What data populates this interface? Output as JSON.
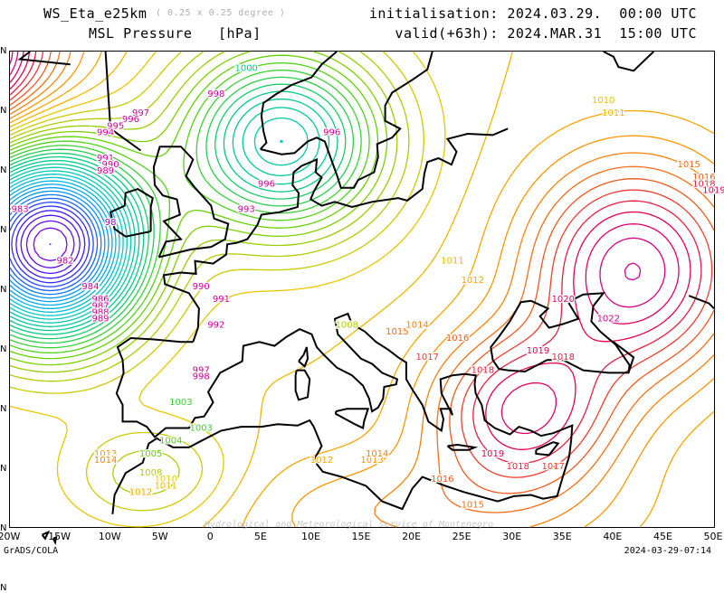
{
  "header": {
    "model": "WS_Eta_e25km",
    "resolution": "( 0.25 x 0.25 degree )",
    "variable": "MSL Pressure   [hPa]",
    "initialisation": "initialisation: 2024.03.29.  00:00 UTC",
    "valid": "valid(+63h): 2024.MAR.31  15:00 UTC"
  },
  "x_ticks": [
    "20W",
    "15W",
    "10W",
    "5W",
    "0",
    "5E",
    "10E",
    "15E",
    "20E",
    "25E",
    "30E",
    "35E",
    "40E",
    "45E",
    "50E"
  ],
  "y_ticks": [
    "N",
    "N",
    "N",
    "N",
    "N",
    "N",
    "N",
    "N",
    "N",
    "N"
  ],
  "credit": "Hydrological and Meteorological service of Montenegro",
  "footer": {
    "left": "GrADS/COLA",
    "right": "2024-03-29-07:14"
  },
  "colors": {
    "p980": "#9a00c8",
    "p985": "#3c14ff",
    "p990": "#0096ff",
    "p995": "#00c8c8",
    "p1000": "#00cc80",
    "p1005": "#64d200",
    "p1010": "#e6c800",
    "p1013": "#ff9600",
    "p1016": "#f05a1e",
    "p1019": "#e60050",
    "p1022": "#d2009a"
  },
  "map_data": {
    "type": "contour",
    "field": "MSL pressure",
    "units": "hPa",
    "interval": 1,
    "lon_range": [
      -20,
      50
    ],
    "labels": [
      {
        "v": "1000",
        "lon": 3.5,
        "lat": 64.5
      },
      {
        "v": "998",
        "lon": 0.5,
        "lat": 62.5
      },
      {
        "v": "997",
        "lon": -7,
        "lat": 61
      },
      {
        "v": "996",
        "lon": -8,
        "lat": 60.5
      },
      {
        "v": "995",
        "lon": -9.5,
        "lat": 60
      },
      {
        "v": "994",
        "lon": -10.5,
        "lat": 59.5
      },
      {
        "v": "991",
        "lon": -10.5,
        "lat": 57.5
      },
      {
        "v": "990",
        "lon": -10,
        "lat": 57
      },
      {
        "v": "989",
        "lon": -10.5,
        "lat": 56.5
      },
      {
        "v": "983",
        "lon": -19,
        "lat": 53.5
      },
      {
        "v": "98",
        "lon": -10,
        "lat": 52.5
      },
      {
        "v": "982",
        "lon": -14.5,
        "lat": 49.5
      },
      {
        "v": "984",
        "lon": -12,
        "lat": 47.5
      },
      {
        "v": "986",
        "lon": -11,
        "lat": 46.5
      },
      {
        "v": "987",
        "lon": -11,
        "lat": 46
      },
      {
        "v": "988",
        "lon": -11,
        "lat": 45.5
      },
      {
        "v": "989",
        "lon": -11,
        "lat": 45
      },
      {
        "v": "990",
        "lon": -1,
        "lat": 47.5
      },
      {
        "v": "991",
        "lon": 1,
        "lat": 46.5
      },
      {
        "v": "992",
        "lon": 0.5,
        "lat": 44.5
      },
      {
        "v": "996",
        "lon": 5.5,
        "lat": 55.5
      },
      {
        "v": "993",
        "lon": 3.5,
        "lat": 53.5
      },
      {
        "v": "996",
        "lon": 12,
        "lat": 59.5
      },
      {
        "v": "997",
        "lon": -1,
        "lat": 41
      },
      {
        "v": "998",
        "lon": -1,
        "lat": 40.5
      },
      {
        "v": "1003",
        "lon": -3,
        "lat": 38.5
      },
      {
        "v": "1003",
        "lon": -1,
        "lat": 36.5
      },
      {
        "v": "1004",
        "lon": -4,
        "lat": 35.5
      },
      {
        "v": "1005",
        "lon": -6,
        "lat": 34.5
      },
      {
        "v": "1008",
        "lon": -6,
        "lat": 33
      },
      {
        "v": "1010",
        "lon": -4.5,
        "lat": 32.5
      },
      {
        "v": "1011",
        "lon": -4.5,
        "lat": 32
      },
      {
        "v": "1012",
        "lon": -7,
        "lat": 31.5
      },
      {
        "v": "1013",
        "lon": -10.5,
        "lat": 34.5
      },
      {
        "v": "1014",
        "lon": -10.5,
        "lat": 34
      },
      {
        "v": "1012",
        "lon": 11,
        "lat": 34
      },
      {
        "v": "1013",
        "lon": 16,
        "lat": 34
      },
      {
        "v": "1014",
        "lon": 16.5,
        "lat": 34.5
      },
      {
        "v": "1008",
        "lon": 13.5,
        "lat": 44.5
      },
      {
        "v": "1011",
        "lon": 24,
        "lat": 49.5
      },
      {
        "v": "1012",
        "lon": 26,
        "lat": 48
      },
      {
        "v": "1015",
        "lon": 18.5,
        "lat": 44
      },
      {
        "v": "1014",
        "lon": 20.5,
        "lat": 44.5
      },
      {
        "v": "1016",
        "lon": 24.5,
        "lat": 43.5
      },
      {
        "v": "1017",
        "lon": 21.5,
        "lat": 42
      },
      {
        "v": "1018",
        "lon": 27,
        "lat": 41
      },
      {
        "v": "1019",
        "lon": 32.5,
        "lat": 42.5
      },
      {
        "v": "1018",
        "lon": 35,
        "lat": 42
      },
      {
        "v": "1020",
        "lon": 35,
        "lat": 46.5
      },
      {
        "v": "1022",
        "lon": 39.5,
        "lat": 45
      },
      {
        "v": "1019",
        "lon": 28,
        "lat": 34.5
      },
      {
        "v": "1018",
        "lon": 30.5,
        "lat": 33.5
      },
      {
        "v": "1017",
        "lon": 34,
        "lat": 33.5
      },
      {
        "v": "1016",
        "lon": 23,
        "lat": 32.5
      },
      {
        "v": "1015",
        "lon": 26,
        "lat": 30.5
      },
      {
        "v": "1010",
        "lon": 39,
        "lat": 62
      },
      {
        "v": "1011",
        "lon": 40,
        "lat": 61
      },
      {
        "v": "1015",
        "lon": 47.5,
        "lat": 57
      },
      {
        "v": "1016",
        "lon": 49,
        "lat": 56
      },
      {
        "v": "1018",
        "lon": 49,
        "lat": 55.5
      },
      {
        "v": "1019",
        "lon": 50,
        "lat": 55
      }
    ]
  }
}
